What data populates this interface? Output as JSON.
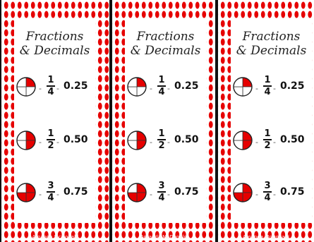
{
  "cards": [
    {
      "title_line1": "Fractions",
      "title_line2": "& Decimals",
      "rows": [
        {
          "numerator": "1",
          "denominator": "4",
          "decimal": "0.25",
          "filled_quarters": 1,
          "dash": "-"
        },
        {
          "numerator": "1",
          "denominator": "2",
          "decimal": "0.50",
          "filled_quarters": 2,
          "dash": "-"
        },
        {
          "numerator": "3",
          "denominator": "4",
          "decimal": "0.75",
          "filled_quarters": 3,
          "dash": "-"
        }
      ],
      "footer": "Amanda McDonald"
    },
    {
      "title_line1": "Fractions",
      "title_line2": "& Decimals",
      "rows": [
        {
          "numerator": "1",
          "denominator": "4",
          "decimal": "0.25",
          "filled_quarters": 1,
          "dash": "-"
        },
        {
          "numerator": "1",
          "denominator": "2",
          "decimal": "0.50",
          "filled_quarters": 2,
          "dash": "-"
        },
        {
          "numerator": "3",
          "denominator": "4",
          "decimal": "0.75",
          "filled_quarters": 3,
          "dash": "-"
        }
      ],
      "footer": "Amanda McDonald"
    },
    {
      "title_line1": "Fractions",
      "title_line2": "& Decimals",
      "rows": [
        {
          "numerator": "1",
          "denominator": "4",
          "decimal": "0.25",
          "filled_quarters": 1,
          "dash": "-"
        },
        {
          "numerator": "1",
          "denominator": "2",
          "decimal": "0.50",
          "filled_quarters": 2,
          "dash": "-"
        },
        {
          "numerator": "3",
          "denominator": "4",
          "decimal": "0.75",
          "filled_quarters": 3,
          "dash": "-"
        }
      ],
      "footer": "Amanda McDonald"
    }
  ],
  "colors": {
    "accent_red": "#e60000",
    "border": "#111111",
    "text": "#111111"
  },
  "icons": {
    "fraction_pie": "pie-fraction-icon"
  }
}
